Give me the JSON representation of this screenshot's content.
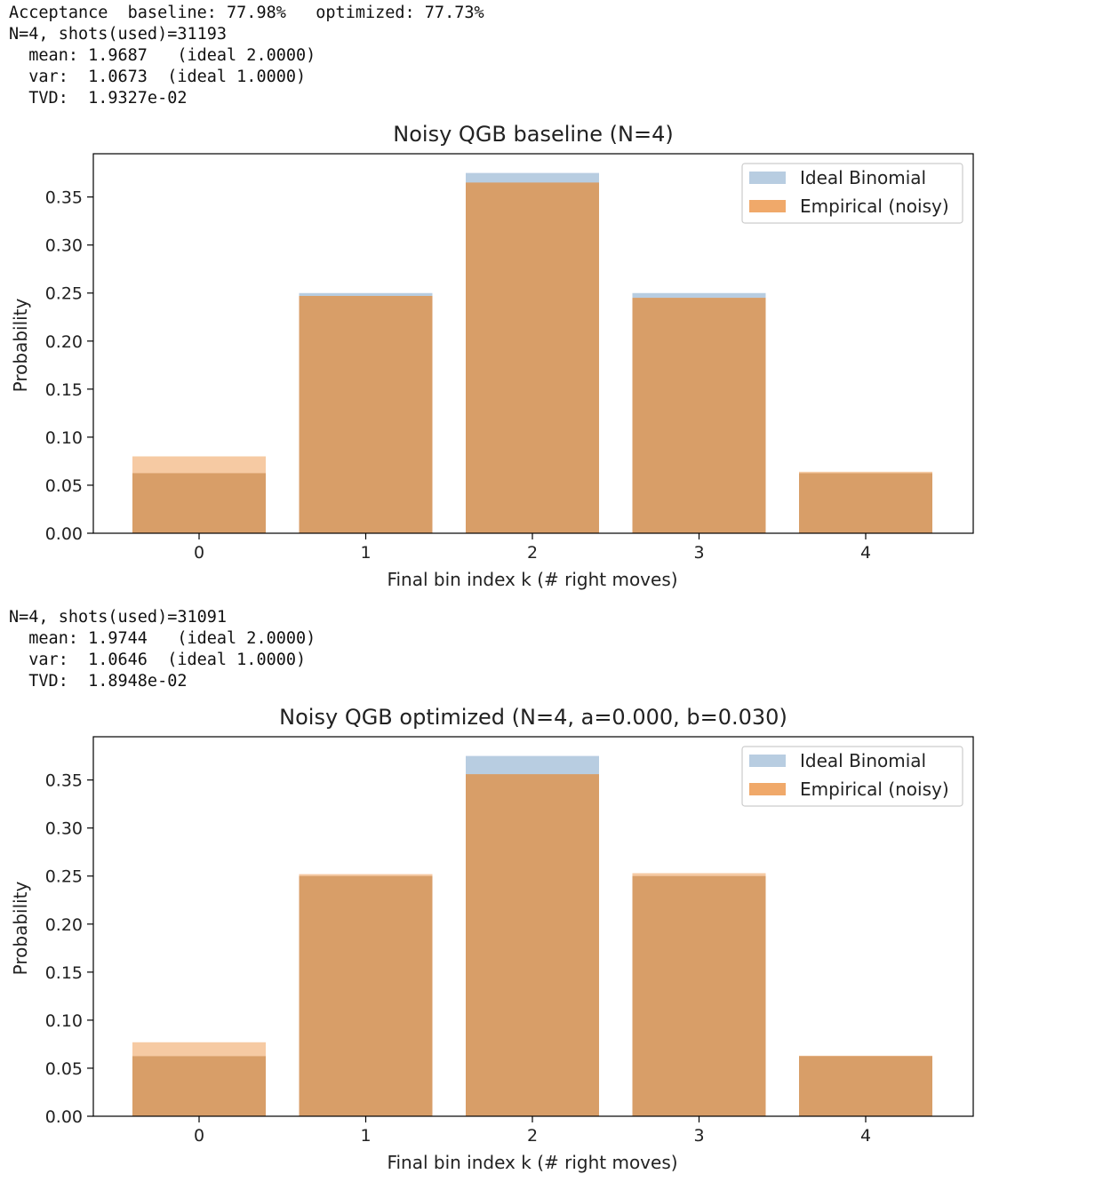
{
  "output": {
    "top": {
      "line1": "Acceptance  baseline: 77.98%   optimized: 77.73%",
      "line2": "N=4, shots(used)=31193",
      "line3": "  mean: 1.9687   (ideal 2.0000)",
      "line4": "  var:  1.0673  (ideal 1.0000)",
      "line5": "  TVD:  1.9327e-02"
    },
    "bottom": {
      "line1": "N=4, shots(used)=31091",
      "line2": "  mean: 1.9744   (ideal 2.0000)",
      "line3": "  var:  1.0646  (ideal 1.0000)",
      "line4": "  TVD:  1.8948e-02"
    }
  },
  "colors": {
    "ideal": "#b8cde1",
    "empirical": "#f0a96a",
    "overlap": "#d89e68"
  },
  "chart_data": [
    {
      "type": "bar",
      "title": "Noisy QGB baseline (N=4)",
      "xlabel": "Final bin index k (# right moves)",
      "ylabel": "Probability",
      "categories": [
        "0",
        "1",
        "2",
        "3",
        "4"
      ],
      "series": [
        {
          "name": "Ideal Binomial",
          "values": [
            0.0625,
            0.25,
            0.375,
            0.25,
            0.0625
          ]
        },
        {
          "name": "Empirical (noisy)",
          "values": [
            0.08,
            0.247,
            0.365,
            0.245,
            0.064
          ]
        }
      ],
      "ylim": [
        0,
        0.395
      ],
      "yticks": [
        "0.00",
        "0.05",
        "0.10",
        "0.15",
        "0.20",
        "0.25",
        "0.30",
        "0.35"
      ],
      "legend": "top-right"
    },
    {
      "type": "bar",
      "title": "Noisy QGB optimized (N=4, a=0.000, b=0.030)",
      "xlabel": "Final bin index k (# right moves)",
      "ylabel": "Probability",
      "categories": [
        "0",
        "1",
        "2",
        "3",
        "4"
      ],
      "series": [
        {
          "name": "Ideal Binomial",
          "values": [
            0.0625,
            0.25,
            0.375,
            0.25,
            0.0625
          ]
        },
        {
          "name": "Empirical (noisy)",
          "values": [
            0.077,
            0.252,
            0.356,
            0.253,
            0.063
          ]
        }
      ],
      "ylim": [
        0,
        0.395
      ],
      "yticks": [
        "0.00",
        "0.05",
        "0.10",
        "0.15",
        "0.20",
        "0.25",
        "0.30",
        "0.35"
      ],
      "legend": "top-right"
    }
  ]
}
